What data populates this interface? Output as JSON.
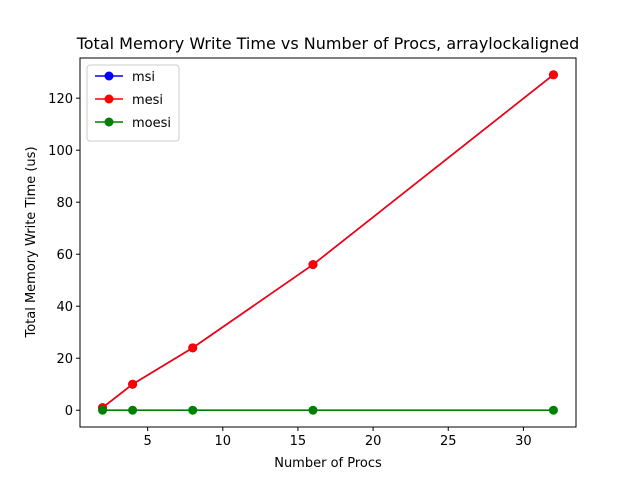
{
  "chart_data": {
    "type": "line",
    "title": "Total Memory Write Time vs Number of Procs, arraylockaligned",
    "xlabel": "Number of Procs",
    "ylabel": "Total Memory Write Time (us)",
    "x": [
      2,
      4,
      8,
      16,
      32
    ],
    "xlim": [
      0.5,
      33.5
    ],
    "ylim": [
      -6.45,
      135.45
    ],
    "xticks": [
      5,
      10,
      15,
      20,
      25,
      30
    ],
    "yticks": [
      0,
      20,
      40,
      60,
      80,
      100,
      120
    ],
    "grid": false,
    "legend_position": "upper-left",
    "series": [
      {
        "name": "msi",
        "color": "#0000ff",
        "values": [
          1,
          10,
          24,
          56,
          129
        ]
      },
      {
        "name": "mesi",
        "color": "#ff0000",
        "values": [
          1,
          10,
          24,
          56,
          129
        ]
      },
      {
        "name": "moesi",
        "color": "#008000",
        "values": [
          0,
          0,
          0,
          0,
          0
        ]
      }
    ]
  }
}
